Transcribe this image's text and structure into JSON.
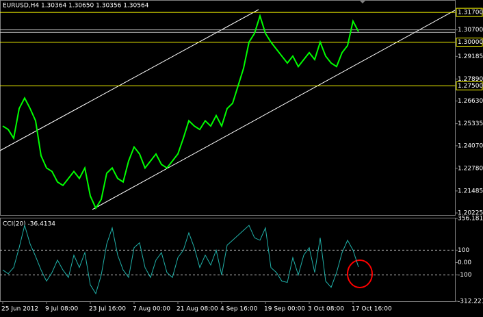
{
  "chart_data": [
    {
      "type": "line",
      "title": "EURUSD,H4  1.30364 1.30650 1.30356 1.30564",
      "series": [
        {
          "color": "#00ff00",
          "values": [
            1.252,
            1.25,
            1.245,
            1.262,
            1.268,
            1.262,
            1.255,
            1.235,
            1.228,
            1.226,
            1.22,
            1.218,
            1.222,
            1.226,
            1.222,
            1.228,
            1.212,
            1.205,
            1.21,
            1.225,
            1.228,
            1.222,
            1.22,
            1.232,
            1.24,
            1.236,
            1.228,
            1.232,
            1.236,
            1.23,
            1.228,
            1.232,
            1.236,
            1.245,
            1.255,
            1.252,
            1.25,
            1.255,
            1.252,
            1.258,
            1.252,
            1.262,
            1.265,
            1.275,
            1.285,
            1.3,
            1.305,
            1.315,
            1.305,
            1.3,
            1.296,
            1.292,
            1.288,
            1.292,
            1.286,
            1.29,
            1.294,
            1.29,
            1.3,
            1.292,
            1.288,
            1.286,
            1.294,
            1.298,
            1.312,
            1.306
          ]
        }
      ],
      "ylim": [
        1.2011,
        1.3237
      ],
      "yticks": [
        {
          "value": 1.317,
          "label": "1.31700"
        },
        {
          "value": 1.307,
          "label": "1.30700"
        },
        {
          "value": 1.3,
          "label": "1.30000"
        },
        {
          "value": 1.29185,
          "label": "1.29185"
        },
        {
          "value": 1.2789,
          "label": "1.27890"
        },
        {
          "value": 1.275,
          "label": "1.27500"
        },
        {
          "value": 1.2663,
          "label": "1.26630"
        },
        {
          "value": 1.25335,
          "label": "1.25335"
        },
        {
          "value": 1.2407,
          "label": "1.24070"
        },
        {
          "value": 1.2278,
          "label": "1.22780"
        },
        {
          "value": 1.21485,
          "label": "1.21485"
        },
        {
          "value": 1.20225,
          "label": "1.20225"
        }
      ],
      "hlines": [
        {
          "value": 1.317,
          "color": "#ffff00"
        },
        {
          "value": 1.307,
          "color": "#c0c0c0"
        },
        {
          "value": 1.3056,
          "color": "#c0c0c0"
        },
        {
          "value": 1.3,
          "color": "#ffff00"
        },
        {
          "value": 1.275,
          "color": "#ffff00"
        }
      ]
    },
    {
      "type": "line",
      "title": "CCI(20) -36.4134",
      "series": [
        {
          "color": "#20b2aa",
          "values": [
            -60,
            -90,
            -40,
            120,
            300,
            150,
            50,
            -60,
            -150,
            -80,
            20,
            -60,
            -120,
            60,
            -40,
            80,
            -180,
            -250,
            -100,
            150,
            280,
            60,
            -60,
            -120,
            120,
            160,
            -40,
            -120,
            20,
            80,
            -80,
            -120,
            40,
            100,
            240,
            120,
            -40,
            60,
            -20,
            100,
            -100,
            140,
            180,
            220,
            260,
            300,
            200,
            180,
            280,
            -40,
            -80,
            -150,
            -160,
            40,
            -100,
            60,
            120,
            -80,
            200,
            -150,
            -200,
            -80,
            80,
            180,
            100,
            -36
          ]
        }
      ],
      "ylim": [
        -312.221,
        356.181
      ],
      "yticks": [
        356.181,
        100,
        {
          "value": 0,
          "label": "0.00"
        },
        -100,
        -312.221
      ],
      "dashed_levels": [
        100,
        -100
      ],
      "xticks": [
        {
          "value": 0,
          "label": "25 Jun 2012"
        },
        {
          "value": 8,
          "label": "9 Jul 08:00"
        },
        {
          "value": 16,
          "label": "23 Jul 16:00"
        },
        {
          "value": 24,
          "label": "7 Aug 00:00"
        },
        {
          "value": 32,
          "label": "21 Aug 08:00"
        },
        {
          "value": 40,
          "label": "4 Sep 16:00"
        },
        {
          "value": 48,
          "label": "19 Sep 00:00"
        },
        {
          "value": 56,
          "label": "3 Oct 08:00"
        },
        {
          "value": 64,
          "label": "17 Oct 16:00"
        }
      ]
    }
  ]
}
